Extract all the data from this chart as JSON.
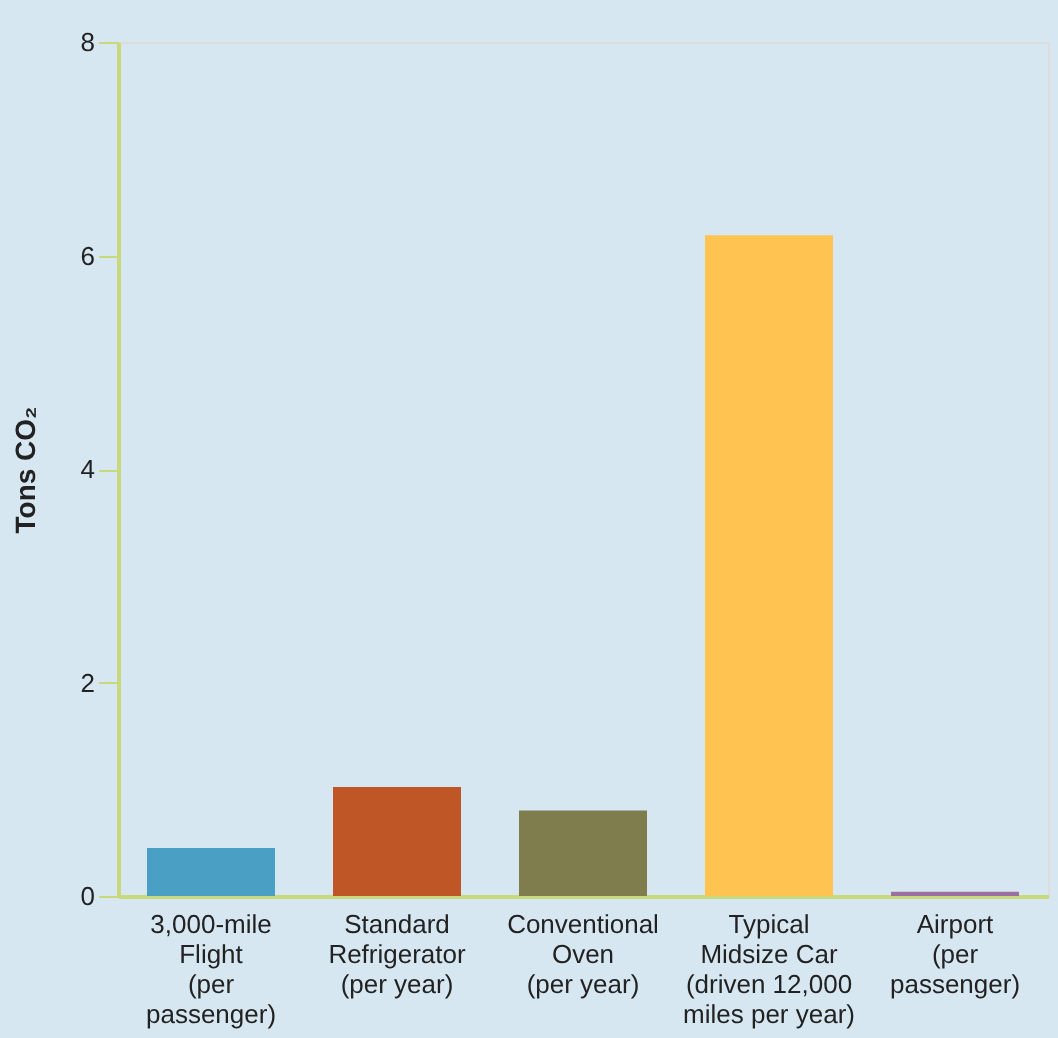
{
  "chart_data": {
    "type": "bar",
    "categories": [
      "3,000-mile\nFlight\n(per\npassenger)",
      "Standard\nRefrigerator\n(per year)",
      "Conventional\nOven\n(per year)",
      "Typical\nMidsize Car\n(driven 12,000\nmiles per year)",
      "Airport\n(per\npassenger)"
    ],
    "values": [
      0.45,
      1.02,
      0.8,
      6.19,
      0.04
    ],
    "colors": [
      "#4a9fc4",
      "#bf5626",
      "#7f7d4e",
      "#ffc352",
      "#9b6fa0"
    ],
    "ylabel": "Tons CO₂",
    "ylim": [
      0,
      8
    ],
    "yticks": [
      0,
      2,
      4,
      6,
      8
    ],
    "grid": false
  }
}
